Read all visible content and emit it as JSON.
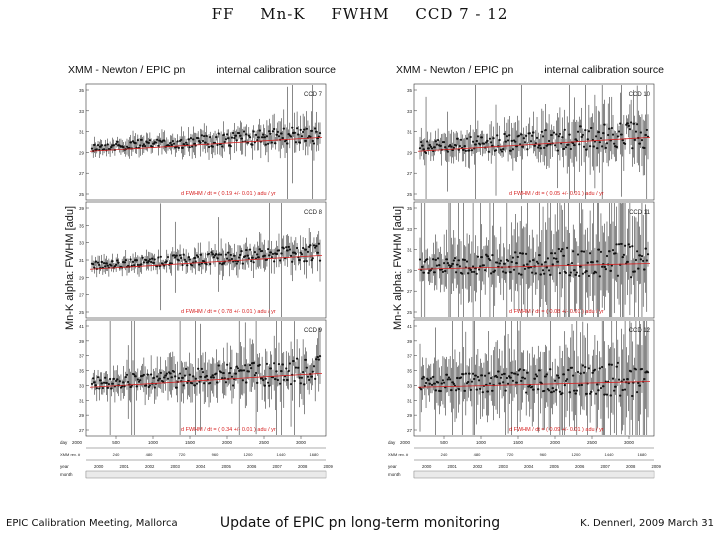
{
  "slide": {
    "title_parts": [
      "FF",
      "Mn-K",
      "FWHM",
      "CCD 7 - 12"
    ]
  },
  "footer": {
    "left": "EPIC Calibration Meeting, Mallorca",
    "center": "Update of EPIC pn long-term monitoring",
    "right": "K. Dennerl, 2009 March 31"
  },
  "colors": {
    "fit_line": "#d62020",
    "fit_text": "#d62020",
    "data": "#111111"
  },
  "figures": [
    {
      "header_left": "XMM - Newton  /  EPIC pn",
      "header_right": "internal calibration source",
      "ylabel": "Mn-K alpha: FWHM [adu]",
      "panels": [
        {
          "ccd": "CCD 7",
          "fit_text": "d FWHM / dt  =  ( 0.19 +/- 0.01 )  adu / yr",
          "yticks": [
            "35",
            "33",
            "31",
            "29",
            "27",
            "25"
          ],
          "noise": "low"
        },
        {
          "ccd": "CCD 8",
          "fit_text": "d FWHM / dt  =  ( 0.78 +/- 0.01 )  adu / yr",
          "yticks": [
            "39",
            "35",
            "33",
            "31",
            "29",
            "27",
            "25"
          ],
          "noise": "low"
        },
        {
          "ccd": "CCD 9",
          "fit_text": "d FWHM / dt  =  ( 0.34 +/- 0.01 )  adu / yr",
          "yticks": [
            "41",
            "39",
            "37",
            "35",
            "33",
            "31",
            "29",
            "27"
          ],
          "noise": "mid"
        }
      ],
      "axes": {
        "day_label": "day",
        "day_start": "2000",
        "day_ticks": [
          "500",
          "1000",
          "1500",
          "2000",
          "2500",
          "3000"
        ],
        "rev_label": "XMM rev. #",
        "rev_ticks": [
          "240",
          "480",
          "720",
          "960",
          "1200",
          "1440",
          "1680"
        ],
        "year_label": "year",
        "year_ticks": [
          "2000",
          "2001",
          "2002",
          "2003",
          "2004",
          "2005",
          "2006",
          "2007",
          "2008",
          "2009"
        ],
        "month_label": "month"
      }
    },
    {
      "header_left": "XMM - Newton  /  EPIC pn",
      "header_right": "internal calibration source",
      "ylabel": "Mn-K alpha: FWHM [adu]",
      "panels": [
        {
          "ccd": "CCD 10",
          "fit_text": "d FWHM / dt  =  ( 0.05 +/- 0.01 )  adu / yr",
          "yticks": [
            "35",
            "33",
            "31",
            "29",
            "27",
            "25"
          ],
          "noise": "mid"
        },
        {
          "ccd": "CCD 11",
          "fit_text": "d FWHM / dt  =  ( 0.08 +/- 0.01 )  adu / yr",
          "yticks": [
            "35",
            "33",
            "31",
            "29",
            "27",
            "25"
          ],
          "noise": "high"
        },
        {
          "ccd": "CCD 12",
          "fit_text": "d FWHM / dt  =  ( 0.09 +/- 0.01 )  adu / yr",
          "yticks": [
            "41",
            "39",
            "37",
            "35",
            "33",
            "31",
            "29",
            "27"
          ],
          "noise": "high"
        }
      ],
      "axes": {
        "day_label": "day",
        "day_start": "2000",
        "day_ticks": [
          "500",
          "1000",
          "1500",
          "2000",
          "2500",
          "3000"
        ],
        "rev_label": "XMM rev. #",
        "rev_ticks": [
          "240",
          "480",
          "720",
          "960",
          "1200",
          "1440",
          "1680"
        ],
        "year_label": "year",
        "year_ticks": [
          "2000",
          "2001",
          "2002",
          "2003",
          "2004",
          "2005",
          "2006",
          "2007",
          "2008",
          "2009"
        ],
        "month_label": "month"
      }
    }
  ],
  "chart_data": {
    "type": "scatter",
    "title": "FF Mn-K FWHM CCD 7 - 12",
    "xlabel": "day",
    "ylabel": "Mn-K alpha: FWHM [adu]",
    "xlim": [
      0,
      3300
    ],
    "series": [
      {
        "name": "CCD 7",
        "trend_adu_per_yr": 0.19,
        "trend_err": 0.01,
        "ylim": [
          24,
          36
        ]
      },
      {
        "name": "CCD 8",
        "trend_adu_per_yr": 0.78,
        "trend_err": 0.01,
        "ylim": [
          24,
          40
        ]
      },
      {
        "name": "CCD 9",
        "trend_adu_per_yr": 0.34,
        "trend_err": 0.01,
        "ylim": [
          26,
          42
        ]
      },
      {
        "name": "CCD 10",
        "trend_adu_per_yr": 0.05,
        "trend_err": 0.01,
        "ylim": [
          24,
          36
        ]
      },
      {
        "name": "CCD 11",
        "trend_adu_per_yr": 0.08,
        "trend_err": 0.01,
        "ylim": [
          24,
          36
        ]
      },
      {
        "name": "CCD 12",
        "trend_adu_per_yr": 0.09,
        "trend_err": 0.01,
        "ylim": [
          26,
          42
        ]
      }
    ]
  }
}
